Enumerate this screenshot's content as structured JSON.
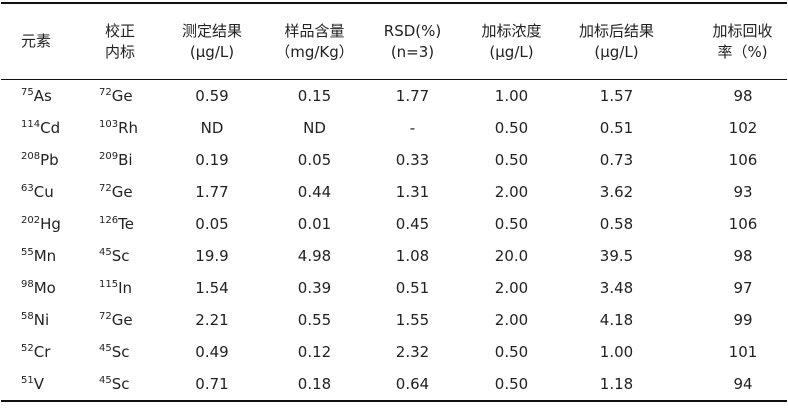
{
  "table": {
    "headers": [
      [
        "元素"
      ],
      [
        "校正",
        "内标"
      ],
      [
        "测定结果",
        "(μg/L)"
      ],
      [
        "样品含量",
        "（mg/Kg）"
      ],
      [
        "RSD(%)",
        "(n=3)"
      ],
      [
        "加标浓度",
        "(μg/L)"
      ],
      [
        "加标后结果",
        "(μg/L)"
      ],
      [
        "加标回收",
        "率（%)"
      ]
    ],
    "rows": [
      [
        {
          "mass": "75",
          "symbol": "As"
        },
        {
          "mass": "72",
          "symbol": "Ge"
        },
        "0.59",
        "0.15",
        "1.77",
        "1.00",
        "1.57",
        "98"
      ],
      [
        {
          "mass": "114",
          "symbol": "Cd"
        },
        {
          "mass": "103",
          "symbol": "Rh"
        },
        "ND",
        "ND",
        "-",
        "0.50",
        "0.51",
        "102"
      ],
      [
        {
          "mass": "208",
          "symbol": "Pb"
        },
        {
          "mass": "209",
          "symbol": "Bi"
        },
        "0.19",
        "0.05",
        "0.33",
        "0.50",
        "0.73",
        "106"
      ],
      [
        {
          "mass": "63",
          "symbol": "Cu"
        },
        {
          "mass": "72",
          "symbol": "Ge"
        },
        "1.77",
        "0.44",
        "1.31",
        "2.00",
        "3.62",
        "93"
      ],
      [
        {
          "mass": "202",
          "symbol": "Hg"
        },
        {
          "mass": "126",
          "symbol": "Te"
        },
        "0.05",
        "0.01",
        "0.45",
        "0.50",
        "0.58",
        "106"
      ],
      [
        {
          "mass": "55",
          "symbol": "Mn"
        },
        {
          "mass": "45",
          "symbol": "Sc"
        },
        "19.9",
        "4.98",
        "1.08",
        "20.0",
        "39.5",
        "98"
      ],
      [
        {
          "mass": "98",
          "symbol": "Mo"
        },
        {
          "mass": "115",
          "symbol": "In"
        },
        "1.54",
        "0.39",
        "0.51",
        "2.00",
        "3.48",
        "97"
      ],
      [
        {
          "mass": "58",
          "symbol": "Ni"
        },
        {
          "mass": "72",
          "symbol": "Ge"
        },
        "2.21",
        "0.55",
        "1.55",
        "2.00",
        "4.18",
        "99"
      ],
      [
        {
          "mass": "52",
          "symbol": "Cr"
        },
        {
          "mass": "45",
          "symbol": "Sc"
        },
        "0.49",
        "0.12",
        "2.32",
        "0.50",
        "1.00",
        "101"
      ],
      [
        {
          "mass": "51",
          "symbol": "V"
        },
        {
          "mass": "45",
          "symbol": "Sc"
        },
        "0.71",
        "0.18",
        "0.64",
        "0.50",
        "1.18",
        "94"
      ]
    ]
  }
}
